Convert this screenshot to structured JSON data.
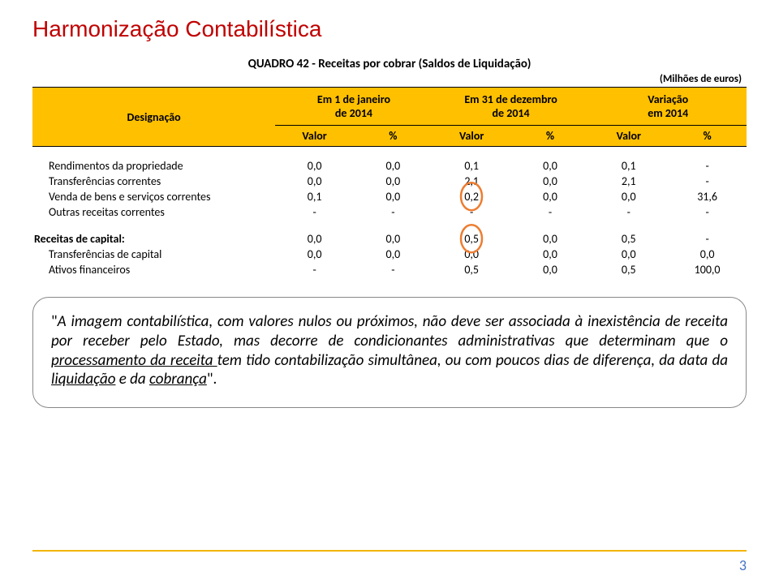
{
  "title": {
    "text": "Harmonização Contabilística",
    "color": "#c00000"
  },
  "subtitle": "QUADRO 42 - Receitas por cobrar (Saldos de Liquidação)",
  "units": "(Milhões de euros)",
  "header": {
    "bg": "#ffc000",
    "desig": "Designação",
    "groups": [
      {
        "line1": "Em 1 de janeiro",
        "line2": "de 2014"
      },
      {
        "line1": "Em 31 de dezembro",
        "line2": "de 2014"
      },
      {
        "line1": "Variação",
        "line2": "em 2014"
      }
    ],
    "sub": [
      "Valor",
      "%",
      "Valor",
      "%",
      "Valor",
      "%"
    ]
  },
  "rows": [
    {
      "label": "Rendimentos da propriedade",
      "vals": [
        "0,0",
        "0,0",
        "0,1",
        "0,0",
        "0,1",
        "-"
      ],
      "indent": true
    },
    {
      "label": "Transferências correntes",
      "vals": [
        "0,0",
        "0,0",
        "2,1",
        "0,0",
        "2,1",
        "-"
      ],
      "indent": true
    },
    {
      "label": "Venda de bens e serviços correntes",
      "vals": [
        "0,1",
        "0,0",
        "0,2",
        "0,0",
        "0,0",
        "31,6"
      ],
      "indent": true,
      "circle": 2
    },
    {
      "label": "Outras receitas correntes",
      "vals": [
        "-",
        "-",
        "-",
        "-",
        "-",
        "-"
      ],
      "indent": true
    },
    {
      "spacer": true
    },
    {
      "label": "Receitas de capital:",
      "vals": [
        "0,0",
        "0,0",
        "0,5",
        "0,0",
        "0,5",
        "-"
      ],
      "bold": true,
      "circle": 2
    },
    {
      "label": "Transferências de capital",
      "vals": [
        "0,0",
        "0,0",
        "0,0",
        "0,0",
        "0,0",
        "0,0"
      ],
      "indent": true
    },
    {
      "label": "Ativos financeiros",
      "vals": [
        "-",
        "-",
        "0,5",
        "0,0",
        "0,5",
        "100,0"
      ],
      "indent": true
    }
  ],
  "circle_color": "#ed7d31",
  "callout": {
    "pre": "\"",
    "italic": "A imagem contabilística, com valores nulos ou próximos, não deve ser associada à inexistência de receita por receber pelo Estado, mas decorre de condicionantes administrativas que determinam que o ",
    "u1": "processamento da receita ",
    "mid": "tem tido contabilização simultânea, ou com poucos dias de diferença, da data da ",
    "u2": "liquidação",
    "mid2": " e da ",
    "u3": "cobrança",
    "post": "\"."
  },
  "page": "3"
}
